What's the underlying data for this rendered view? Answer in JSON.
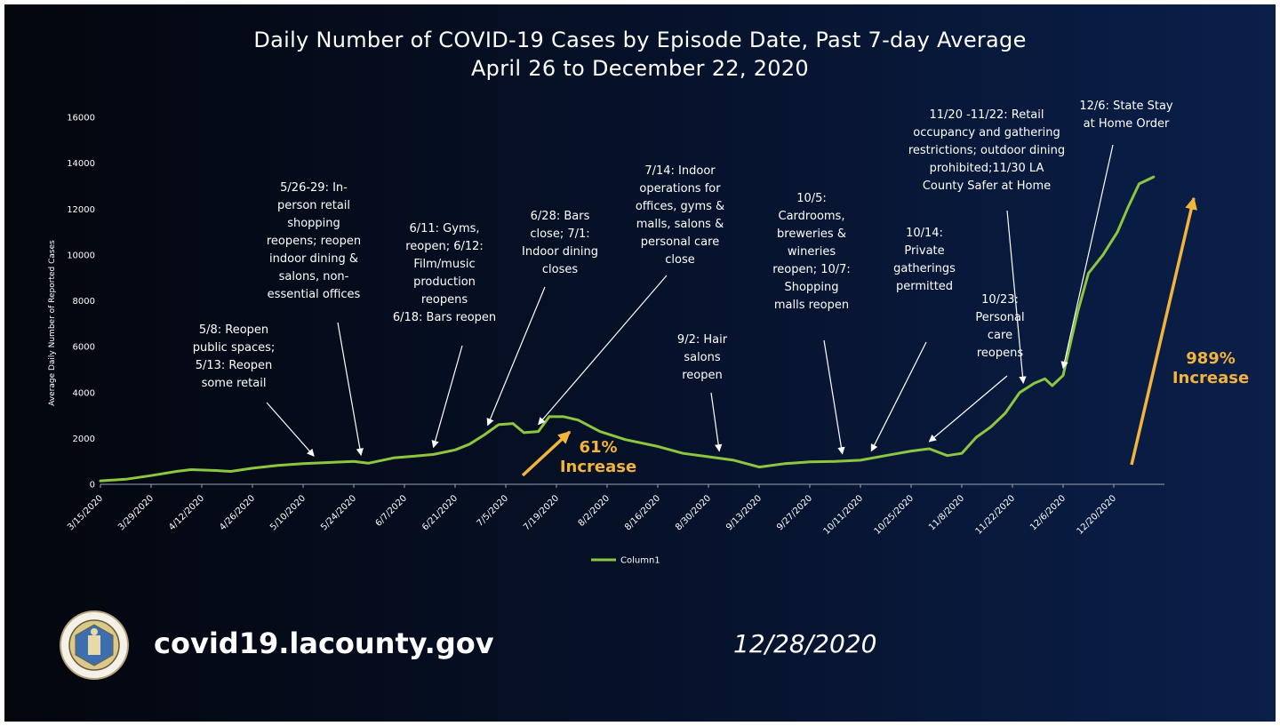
{
  "footer": {
    "url": "covid19.lacounty.gov",
    "date": "12/28/2020",
    "seal_icon": "county-seal-icon"
  },
  "colors": {
    "line": "#8dc63f",
    "highlight": "#f2b43b",
    "text": "#ffffff"
  },
  "annotations": [
    {
      "text": "5/8: Reopen\npublic spaces;\n5/13: Reopen\nsome retail",
      "points_to": "5/13/2020"
    },
    {
      "text": "5/26-29: In-\nperson retail\nshopping\nreopens; reopen\nindoor dining &\nsalons, non-\nessential offices",
      "points_to": "5/26/2020"
    },
    {
      "text": "6/11: Gyms,\nreopen; 6/12:\nFilm/music\nproduction\nreopens\n6/18: Bars reopen",
      "points_to": "6/15/2020"
    },
    {
      "text": "6/28: Bars\nclose; 7/1:\nIndoor dining\ncloses",
      "points_to": "6/30/2020"
    },
    {
      "text": "7/14: Indoor\noperations for\noffices, gyms &\nmalls, salons &\npersonal care\nclose",
      "points_to": "7/14/2020"
    },
    {
      "text": "9/2: Hair\nsalons\nreopen",
      "points_to": "9/2/2020"
    },
    {
      "text": "10/5:\nCardrooms,\nbreweries &\nwineries\nreopen; 10/7:\nShopping\nmalls reopen",
      "points_to": "10/6/2020"
    },
    {
      "text": "10/14:\nPrivate\ngatherings\npermitted",
      "points_to": "10/14/2020"
    },
    {
      "text": "10/23:\nPersonal\ncare\nreopens",
      "points_to": "10/30/2020"
    },
    {
      "text": "11/20 -11/22: Retail\noccupancy and gathering\nrestrictions; outdoor dining\nprohibited;11/30  LA\nCounty Safer at Home",
      "points_to": "11/25/2020"
    },
    {
      "text": "12/6:  State Stay\nat Home Order",
      "points_to": "12/6/2020"
    }
  ],
  "highlights": [
    {
      "text": "61%\nIncrease"
    },
    {
      "text": "989%\nIncrease"
    }
  ],
  "chart_data": {
    "type": "line",
    "title": "Daily Number of COVID-19 Cases by Episode Date, Past 7-day Average",
    "subtitle": "April 26 to December 22, 2020",
    "xlabel": "",
    "ylabel": "Average Daily Number of Reported Cases",
    "ylim": [
      0,
      16000
    ],
    "yticks": [
      0,
      2000,
      4000,
      6000,
      8000,
      10000,
      12000,
      14000,
      16000
    ],
    "xticks": [
      "3/15/2020",
      "3/29/2020",
      "4/12/2020",
      "4/26/2020",
      "5/10/2020",
      "5/24/2020",
      "6/7/2020",
      "6/21/2020",
      "7/5/2020",
      "7/19/2020",
      "8/2/2020",
      "8/16/2020",
      "8/30/2020",
      "9/13/2020",
      "9/27/2020",
      "10/11/2020",
      "10/25/2020",
      "11/8/2020",
      "11/22/2020",
      "12/6/2020",
      "12/20/2020"
    ],
    "legend": {
      "position": "bottom",
      "entries": [
        "Column1"
      ]
    },
    "grid": false,
    "series": [
      {
        "name": "Column1",
        "color": "#8dc63f",
        "points": [
          [
            "3/15/2020",
            150
          ],
          [
            "3/22/2020",
            220
          ],
          [
            "3/29/2020",
            380
          ],
          [
            "4/5/2020",
            560
          ],
          [
            "4/9/2020",
            640
          ],
          [
            "4/16/2020",
            600
          ],
          [
            "4/20/2020",
            560
          ],
          [
            "4/26/2020",
            700
          ],
          [
            "5/3/2020",
            820
          ],
          [
            "5/10/2020",
            900
          ],
          [
            "5/17/2020",
            950
          ],
          [
            "5/24/2020",
            1000
          ],
          [
            "5/28/2020",
            920
          ],
          [
            "6/4/2020",
            1150
          ],
          [
            "6/10/2020",
            1230
          ],
          [
            "6/15/2020",
            1300
          ],
          [
            "6/21/2020",
            1500
          ],
          [
            "6/25/2020",
            1750
          ],
          [
            "6/29/2020",
            2150
          ],
          [
            "7/3/2020",
            2600
          ],
          [
            "7/7/2020",
            2650
          ],
          [
            "7/10/2020",
            2250
          ],
          [
            "7/14/2020",
            2300
          ],
          [
            "7/17/2020",
            2950
          ],
          [
            "7/21/2020",
            2950
          ],
          [
            "7/25/2020",
            2800
          ],
          [
            "7/31/2020",
            2300
          ],
          [
            "8/7/2020",
            1950
          ],
          [
            "8/16/2020",
            1650
          ],
          [
            "8/23/2020",
            1350
          ],
          [
            "8/30/2020",
            1200
          ],
          [
            "9/6/2020",
            1050
          ],
          [
            "9/13/2020",
            750
          ],
          [
            "9/20/2020",
            900
          ],
          [
            "9/27/2020",
            980
          ],
          [
            "10/4/2020",
            1000
          ],
          [
            "10/11/2020",
            1050
          ],
          [
            "10/18/2020",
            1250
          ],
          [
            "10/25/2020",
            1450
          ],
          [
            "10/30/2020",
            1550
          ],
          [
            "11/4/2020",
            1250
          ],
          [
            "11/8/2020",
            1350
          ],
          [
            "11/12/2020",
            2050
          ],
          [
            "11/16/2020",
            2500
          ],
          [
            "11/20/2020",
            3100
          ],
          [
            "11/24/2020",
            4000
          ],
          [
            "11/28/2020",
            4400
          ],
          [
            "12/1/2020",
            4600
          ],
          [
            "12/3/2020",
            4300
          ],
          [
            "12/6/2020",
            4750
          ],
          [
            "12/10/2020",
            7500
          ],
          [
            "12/13/2020",
            9200
          ],
          [
            "12/17/2020",
            10000
          ],
          [
            "12/21/2020",
            11000
          ],
          [
            "12/24/2020",
            12100
          ],
          [
            "12/27/2020",
            13100
          ],
          [
            "12/31/2020",
            13400
          ]
        ]
      }
    ]
  }
}
